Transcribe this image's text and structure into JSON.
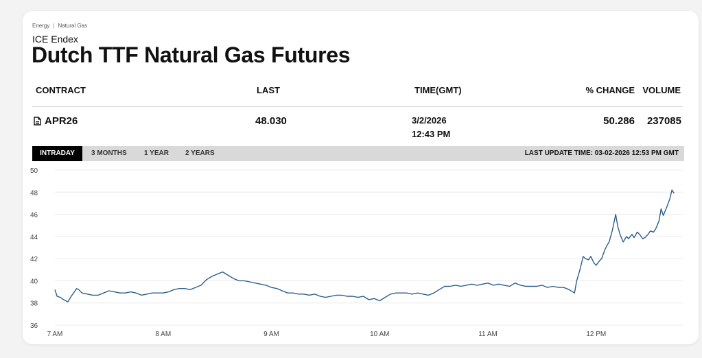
{
  "breadcrumb": {
    "category": "Energy",
    "separator": "|",
    "subcategory": "Natural Gas"
  },
  "exchange": "ICE Endex",
  "title": "Dutch TTF Natural Gas Futures",
  "table": {
    "headers": {
      "contract": "CONTRACT",
      "last": "LAST",
      "time": "TIME(GMT)",
      "pct_change": "% CHANGE",
      "volume": "VOLUME"
    },
    "row": {
      "contract": "APR26",
      "last": "48.030",
      "date": "3/2/2026",
      "time": "12:43 PM",
      "pct_change": "50.286",
      "volume": "237085"
    }
  },
  "tabs": [
    {
      "label": "INTRADAY",
      "active": true
    },
    {
      "label": "3 MONTHS",
      "active": false
    },
    {
      "label": "1 YEAR",
      "active": false
    },
    {
      "label": "2 YEARS",
      "active": false
    }
  ],
  "last_update": "LAST UPDATE TIME: 03-02-2026 12:53 PM GMT",
  "colors": {
    "line": "#2c5d8a",
    "active_tab": "#000000",
    "tab_bar": "#d9d9d9"
  },
  "icons": {
    "contract": "document-icon"
  },
  "chart_data": {
    "type": "line",
    "xlabel": "",
    "ylabel": "",
    "ylim": [
      36,
      50
    ],
    "y_ticks": [
      "50",
      "48",
      "46",
      "44",
      "42",
      "40",
      "38",
      "36"
    ],
    "x_ticks": [
      "7 AM",
      "8 AM",
      "9 AM",
      "10 AM",
      "11 AM",
      "12 PM"
    ],
    "x_unit": "hours (GMT)",
    "xlim": [
      7,
      12.8
    ],
    "grid": true,
    "series": [
      {
        "x": [
          7.0,
          7.02,
          7.05,
          7.08,
          7.12,
          7.15,
          7.18,
          7.2,
          7.22,
          7.25,
          7.3,
          7.35,
          7.4,
          7.45,
          7.5,
          7.55,
          7.6,
          7.65,
          7.7,
          7.75,
          7.8,
          7.85,
          7.9,
          7.95,
          8.0,
          8.05,
          8.1,
          8.15,
          8.2,
          8.25,
          8.3,
          8.35,
          8.4,
          8.45,
          8.5,
          8.55,
          8.6,
          8.65,
          8.7,
          8.75,
          8.8,
          8.85,
          8.9,
          8.95,
          9.0,
          9.05,
          9.1,
          9.15,
          9.2,
          9.25,
          9.3,
          9.35,
          9.4,
          9.45,
          9.5,
          9.55,
          9.6,
          9.65,
          9.7,
          9.75,
          9.8,
          9.85,
          9.9,
          9.95,
          10.0,
          10.05,
          10.1,
          10.15,
          10.2,
          10.25,
          10.3,
          10.35,
          10.4,
          10.45,
          10.5,
          10.55,
          10.6,
          10.65,
          10.7,
          10.75,
          10.8,
          10.85,
          10.9,
          10.95,
          11.0,
          11.05,
          11.1,
          11.15,
          11.2,
          11.25,
          11.3,
          11.35,
          11.4,
          11.45,
          11.5,
          11.55,
          11.6,
          11.65,
          11.7,
          11.75,
          11.8,
          11.82,
          11.85,
          11.88,
          11.9,
          11.93,
          11.95,
          11.98,
          12.0,
          12.03,
          12.05,
          12.08,
          12.1,
          12.12,
          12.15,
          12.18,
          12.2,
          12.22,
          12.25,
          12.28,
          12.3,
          12.33,
          12.35,
          12.38,
          12.4,
          12.43,
          12.45,
          12.48,
          12.5,
          12.53,
          12.55,
          12.58,
          12.6,
          12.62,
          12.65,
          12.68,
          12.7,
          12.72
        ],
        "y": [
          39.2,
          38.6,
          38.5,
          38.3,
          38.1,
          38.6,
          39.0,
          39.3,
          39.2,
          38.9,
          38.8,
          38.7,
          38.7,
          38.9,
          39.1,
          39.0,
          38.9,
          38.9,
          39.0,
          38.9,
          38.7,
          38.8,
          38.9,
          38.9,
          38.9,
          39.0,
          39.2,
          39.3,
          39.3,
          39.2,
          39.4,
          39.6,
          40.1,
          40.4,
          40.6,
          40.8,
          40.5,
          40.2,
          40.0,
          40.0,
          39.9,
          39.8,
          39.7,
          39.6,
          39.4,
          39.3,
          39.1,
          38.9,
          38.9,
          38.8,
          38.8,
          38.7,
          38.8,
          38.6,
          38.5,
          38.6,
          38.7,
          38.7,
          38.6,
          38.6,
          38.5,
          38.6,
          38.3,
          38.4,
          38.2,
          38.5,
          38.8,
          38.9,
          38.9,
          38.9,
          38.8,
          38.9,
          38.8,
          38.7,
          38.9,
          39.2,
          39.5,
          39.5,
          39.6,
          39.5,
          39.6,
          39.7,
          39.6,
          39.7,
          39.8,
          39.6,
          39.7,
          39.6,
          39.5,
          39.8,
          39.6,
          39.5,
          39.5,
          39.5,
          39.6,
          39.4,
          39.5,
          39.4,
          39.4,
          39.2,
          38.9,
          40.0,
          41.0,
          42.2,
          42.0,
          41.9,
          42.2,
          41.6,
          41.4,
          41.8,
          42.0,
          42.8,
          43.2,
          43.5,
          44.6,
          46.0,
          44.9,
          44.2,
          43.5,
          44.0,
          43.8,
          44.2,
          43.9,
          44.4,
          44.2,
          43.8,
          43.9,
          44.2,
          44.5,
          44.4,
          44.7,
          45.4,
          46.5,
          45.9,
          46.6,
          47.4,
          48.2,
          47.9
        ]
      }
    ]
  }
}
